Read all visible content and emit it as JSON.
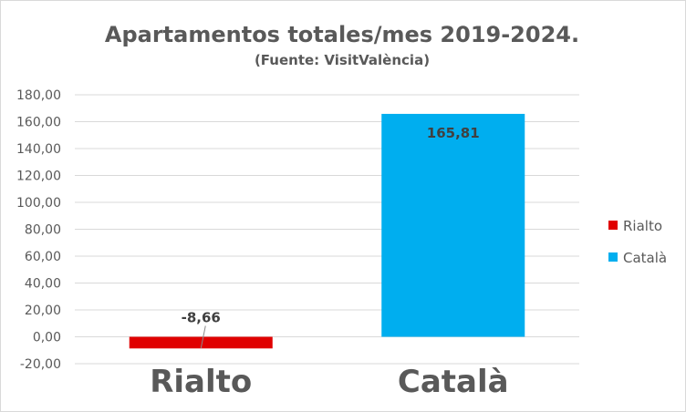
{
  "chart_data": {
    "type": "bar",
    "title": "Apartamentos totales/mes 2019-2024.",
    "subtitle": "(Fuente: VisitValència)",
    "categories": [
      "Rialto",
      "Català"
    ],
    "values": [
      -8.66,
      165.81
    ],
    "data_labels": [
      "-8,66",
      "165,81"
    ],
    "colors": [
      "#E00000",
      "#00AEEF"
    ],
    "ylim": [
      -20,
      180
    ],
    "y_ticks": [
      180,
      160,
      140,
      120,
      100,
      80,
      60,
      40,
      20,
      0,
      -20
    ],
    "y_tick_labels": [
      "180,00",
      "160,00",
      "140,00",
      "120,00",
      "100,00",
      "80,00",
      "60,00",
      "40,00",
      "20,00",
      "0,00",
      "-20,00"
    ],
    "grid": true,
    "legend": {
      "placement": "right",
      "entries": [
        "Rialto",
        "Català"
      ]
    }
  }
}
